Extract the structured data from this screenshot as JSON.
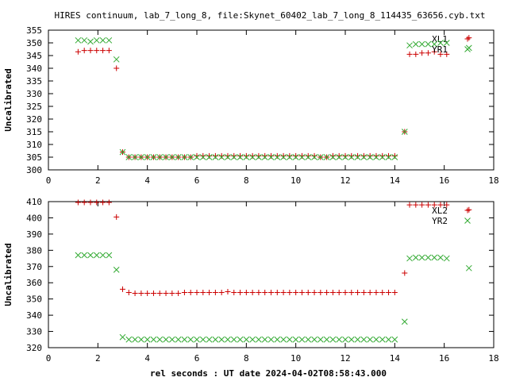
{
  "title": "HIRES continuum, lab_7_long_8, file:Skynet_60402_lab_7_long_8_114435_63656.cyb.txt",
  "xlabel": "rel seconds : UT date 2024-04-02T08:58:43.000",
  "chart_data": [
    {
      "type": "scatter",
      "ylabel": "Uncalibrated",
      "xlim": [
        0,
        18
      ],
      "ylim": [
        300,
        355
      ],
      "xticks": [
        0,
        2,
        4,
        6,
        8,
        10,
        12,
        14,
        16,
        18
      ],
      "yticks": [
        300,
        305,
        310,
        315,
        320,
        325,
        330,
        335,
        340,
        345,
        350,
        355
      ],
      "legend_position": "top-right",
      "series": [
        {
          "name": "XL1",
          "color": "#cc0000",
          "marker": "plus",
          "x": [
            1.2,
            1.45,
            1.7,
            1.95,
            2.2,
            2.45,
            2.75,
            3.0,
            3.25,
            3.5,
            3.75,
            4.0,
            4.25,
            4.5,
            4.75,
            5.0,
            5.25,
            5.5,
            5.75,
            6.0,
            6.25,
            6.5,
            6.75,
            7.0,
            7.25,
            7.5,
            7.75,
            8.0,
            8.25,
            8.5,
            8.75,
            9.0,
            9.25,
            9.5,
            9.75,
            10.0,
            10.25,
            10.5,
            10.75,
            11.0,
            11.25,
            11.5,
            11.75,
            12.0,
            12.25,
            12.5,
            12.75,
            13.0,
            13.25,
            13.5,
            13.75,
            14.0,
            14.4,
            14.6,
            14.85,
            15.1,
            15.35,
            15.6,
            15.85,
            16.1,
            17.0
          ],
          "y": [
            346.5,
            347,
            347,
            347,
            347,
            347,
            340,
            307,
            305,
            305,
            305,
            305,
            305,
            305,
            305,
            305,
            305,
            305,
            305,
            305.5,
            305.5,
            305.5,
            305.5,
            305.5,
            305.5,
            305.5,
            305.5,
            305.5,
            305.5,
            305.5,
            305.5,
            305.5,
            305.5,
            305.5,
            305.5,
            305.5,
            305.5,
            305.5,
            305.5,
            305,
            305,
            305.5,
            305.5,
            305.5,
            305.5,
            305.5,
            305.5,
            305.5,
            305.5,
            305.5,
            305.5,
            305.5,
            315,
            345.5,
            345.5,
            346,
            346,
            346.5,
            345.5,
            345.5,
            352
          ]
        },
        {
          "name": "YR1",
          "color": "#33aa33",
          "marker": "cross",
          "x": [
            1.2,
            1.45,
            1.7,
            1.95,
            2.2,
            2.45,
            2.75,
            3.0,
            3.25,
            3.5,
            3.75,
            4.0,
            4.25,
            4.5,
            4.75,
            5.0,
            5.25,
            5.5,
            5.75,
            6.0,
            6.25,
            6.5,
            6.75,
            7.0,
            7.25,
            7.5,
            7.75,
            8.0,
            8.25,
            8.5,
            8.75,
            9.0,
            9.25,
            9.5,
            9.75,
            10.0,
            10.25,
            10.5,
            10.75,
            11.0,
            11.25,
            11.5,
            11.75,
            12.0,
            12.25,
            12.5,
            12.75,
            13.0,
            13.25,
            13.5,
            13.75,
            14.0,
            14.4,
            14.6,
            14.85,
            15.1,
            15.35,
            15.6,
            15.85,
            16.1,
            17.0
          ],
          "y": [
            351,
            351,
            350.5,
            351,
            351,
            351,
            343.5,
            307,
            305,
            305,
            305,
            305,
            305,
            305,
            305,
            305,
            305,
            305,
            305,
            305,
            305,
            305,
            305,
            305,
            305,
            305,
            305,
            305,
            305,
            305,
            305,
            305,
            305,
            305,
            305,
            305,
            305,
            305,
            305,
            305,
            305,
            305,
            305,
            305,
            305,
            305,
            305,
            305,
            305,
            305,
            305,
            305,
            315,
            349,
            349.5,
            349.5,
            349.5,
            349.5,
            350,
            350,
            348
          ]
        }
      ]
    },
    {
      "type": "scatter",
      "ylabel": "Uncalibrated",
      "xlim": [
        0,
        18
      ],
      "ylim": [
        320,
        410
      ],
      "xticks": [
        0,
        2,
        4,
        6,
        8,
        10,
        12,
        14,
        16,
        18
      ],
      "yticks": [
        320,
        330,
        340,
        350,
        360,
        370,
        380,
        390,
        400,
        410
      ],
      "legend_position": "top-right",
      "series": [
        {
          "name": "XL2",
          "color": "#cc0000",
          "marker": "plus",
          "x": [
            1.2,
            1.45,
            1.7,
            1.95,
            2.2,
            2.45,
            2.75,
            3.0,
            3.25,
            3.5,
            3.75,
            4.0,
            4.25,
            4.5,
            4.75,
            5.0,
            5.25,
            5.5,
            5.75,
            6.0,
            6.25,
            6.5,
            6.75,
            7.0,
            7.25,
            7.5,
            7.75,
            8.0,
            8.25,
            8.5,
            8.75,
            9.0,
            9.25,
            9.5,
            9.75,
            10.0,
            10.25,
            10.5,
            10.75,
            11.0,
            11.25,
            11.5,
            11.75,
            12.0,
            12.25,
            12.5,
            12.75,
            13.0,
            13.25,
            13.5,
            13.75,
            14.0,
            14.4,
            14.6,
            14.85,
            15.1,
            15.35,
            15.6,
            15.85,
            16.1,
            17.0
          ],
          "y": [
            409.5,
            409.5,
            409.5,
            409.5,
            409.5,
            409.5,
            400.5,
            356,
            354,
            353.5,
            353.5,
            353.5,
            353.5,
            353.5,
            353.5,
            353.5,
            353.5,
            354,
            354,
            354,
            354,
            354,
            354,
            354,
            354.5,
            354,
            354,
            354,
            354,
            354,
            354,
            354,
            354,
            354,
            354,
            354,
            354,
            354,
            354,
            354,
            354,
            354,
            354,
            354,
            354,
            354,
            354,
            354,
            354,
            354,
            354,
            354,
            366,
            408,
            408,
            408,
            408,
            408,
            408,
            408,
            405
          ]
        },
        {
          "name": "YR2",
          "color": "#33aa33",
          "marker": "cross",
          "x": [
            1.2,
            1.45,
            1.7,
            1.95,
            2.2,
            2.45,
            2.75,
            3.0,
            3.25,
            3.5,
            3.75,
            4.0,
            4.25,
            4.5,
            4.75,
            5.0,
            5.25,
            5.5,
            5.75,
            6.0,
            6.25,
            6.5,
            6.75,
            7.0,
            7.25,
            7.5,
            7.75,
            8.0,
            8.25,
            8.5,
            8.75,
            9.0,
            9.25,
            9.5,
            9.75,
            10.0,
            10.25,
            10.5,
            10.75,
            11.0,
            11.25,
            11.5,
            11.75,
            12.0,
            12.25,
            12.5,
            12.75,
            13.0,
            13.25,
            13.5,
            13.75,
            14.0,
            14.4,
            14.6,
            14.85,
            15.1,
            15.35,
            15.6,
            15.85,
            16.1,
            17.0
          ],
          "y": [
            377,
            377,
            377,
            377,
            377,
            377,
            368,
            326.5,
            325,
            325,
            325,
            325,
            325,
            325,
            325,
            325,
            325,
            325,
            325,
            325,
            325,
            325,
            325,
            325,
            325,
            325,
            325,
            325,
            325,
            325,
            325,
            325,
            325,
            325,
            325,
            325,
            325,
            325,
            325,
            325,
            325,
            325,
            325,
            325,
            325,
            325,
            325,
            325,
            325,
            325,
            325,
            325,
            336,
            375,
            375.5,
            375.5,
            375.5,
            375.5,
            375.5,
            375,
            369
          ]
        }
      ]
    }
  ]
}
